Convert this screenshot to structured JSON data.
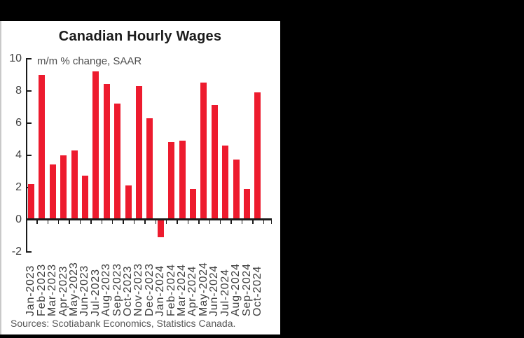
{
  "chart_data": {
    "type": "bar",
    "title": "Canadian Hourly Wages",
    "subtitle": "m/m % change, SAAR",
    "source": "Sources: Scotiabank Economics, Statistics Canada.",
    "categories": [
      "Jan-2023",
      "Feb-2023",
      "Mar-2023",
      "Apr-2023",
      "May-2023",
      "Jun-2023",
      "Jul-2023",
      "Aug-2023",
      "Sep-2023",
      "Oct-2023",
      "Nov-2023",
      "Dec-2023",
      "Jan-2024",
      "Feb-2024",
      "Mar-2024",
      "Apr-2024",
      "May-2024",
      "Jun-2024",
      "Jul-2024",
      "Aug-2024",
      "Sep-2024",
      "Oct-2024"
    ],
    "values": [
      2.2,
      9.0,
      3.4,
      4.0,
      4.3,
      2.7,
      9.2,
      8.4,
      7.2,
      2.1,
      8.3,
      6.3,
      -1.1,
      4.8,
      4.9,
      1.9,
      8.5,
      7.1,
      4.6,
      3.7,
      1.9,
      7.9
    ],
    "ylim": [
      -2,
      10
    ],
    "yticks": [
      10,
      8,
      6,
      4,
      2,
      0,
      -2
    ],
    "xlabel": "",
    "ylabel": "",
    "grid": "off",
    "legend": "none",
    "colors": {
      "bar": "#ED1B2E",
      "axis": "#1a1a1a",
      "tick_label": "#404040",
      "subtitle": "#4d4d4d",
      "source": "#565656",
      "panel_background": "#ffffff",
      "page_background": "#000000"
    }
  }
}
